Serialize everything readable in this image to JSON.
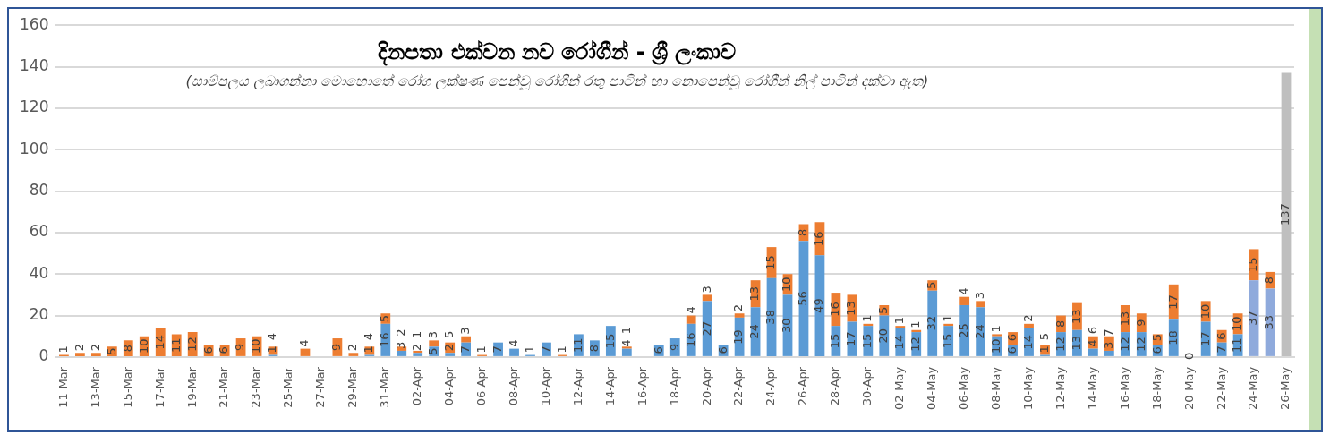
{
  "chart_data": {
    "type": "bar",
    "title": "දිනපතා එක්වන නව රෝගීන් - ශ්‍රී ලංකාව",
    "subtitle": "(සාම්පලය ලබාගන්නා මොහොතේ රෝග ලක්ෂණ පෙන්වූ රෝගීන් රතු පාටින් හා නොපෙන්වූ රෝගීන් නිල් පාටින් දක්වා ඇත)",
    "stacked": true,
    "data_labels": true,
    "grid": "y",
    "legend": false,
    "ylim": [
      0,
      160
    ],
    "yticks": [
      0,
      20,
      40,
      60,
      80,
      100,
      120,
      140,
      160
    ],
    "categories": [
      "11-Mar",
      null,
      "13-Mar",
      null,
      "15-Mar",
      null,
      "17-Mar",
      null,
      "19-Mar",
      null,
      "21-Mar",
      null,
      "23-Mar",
      null,
      "25-Mar",
      null,
      "27-Mar",
      null,
      "29-Mar",
      null,
      "31-Mar",
      null,
      "02-Apr",
      null,
      "04-Apr",
      null,
      "06-Apr",
      null,
      "08-Apr",
      null,
      "10-Apr",
      null,
      "12-Apr",
      null,
      "14-Apr",
      null,
      "16-Apr",
      null,
      "18-Apr",
      null,
      "20-Apr",
      null,
      "22-Apr",
      null,
      "24-Apr",
      null,
      "26-Apr",
      null,
      "28-Apr",
      null,
      "30-Apr",
      null,
      "02-May",
      null,
      "04-May",
      null,
      "06-May",
      null,
      "08-May",
      null,
      "10-May",
      null,
      "12-May",
      null,
      "14-May",
      null,
      "16-May",
      null,
      "18-May",
      null,
      "20-May",
      null,
      "22-May",
      null,
      "24-May",
      null,
      "26-May"
    ],
    "series": [
      {
        "color": "#5b9bd5",
        "colors": [
          null,
          null,
          null,
          null,
          null,
          null,
          null,
          null,
          null,
          null,
          null,
          null,
          null,
          null,
          null,
          null,
          null,
          null,
          null,
          null,
          null,
          null,
          null,
          null,
          null,
          null,
          null,
          null,
          null,
          null,
          null,
          null,
          null,
          null,
          null,
          null,
          null,
          null,
          null,
          null,
          null,
          null,
          null,
          null,
          null,
          null,
          null,
          null,
          null,
          null,
          null,
          null,
          null,
          null,
          null,
          null,
          null,
          null,
          null,
          null,
          null,
          null,
          null,
          null,
          null,
          null,
          null,
          null,
          null,
          null,
          null,
          null,
          null,
          null,
          "#8faadc",
          "#8faadc",
          null
        ],
        "values": [
          null,
          null,
          null,
          null,
          null,
          null,
          null,
          null,
          null,
          null,
          null,
          null,
          null,
          1,
          null,
          null,
          null,
          null,
          null,
          1,
          16,
          3,
          2,
          5,
          2,
          7,
          null,
          7,
          4,
          1,
          7,
          null,
          11,
          8,
          15,
          4,
          null,
          6,
          9,
          16,
          27,
          6,
          19,
          24,
          38,
          30,
          56,
          49,
          15,
          17,
          15,
          20,
          14,
          12,
          32,
          15,
          25,
          24,
          10,
          6,
          14,
          1,
          12,
          13,
          4,
          3,
          12,
          12,
          6,
          18,
          0,
          17,
          7,
          11,
          37,
          33,
          null
        ]
      },
      {
        "color": "#ed7d31",
        "values": [
          1,
          2,
          2,
          5,
          8,
          10,
          14,
          11,
          12,
          6,
          6,
          9,
          10,
          4,
          null,
          4,
          null,
          9,
          2,
          4,
          5,
          2,
          1,
          3,
          5,
          3,
          1,
          null,
          null,
          null,
          null,
          1,
          null,
          null,
          null,
          1,
          null,
          null,
          null,
          4,
          3,
          null,
          2,
          13,
          15,
          10,
          8,
          16,
          16,
          13,
          1,
          5,
          1,
          1,
          5,
          1,
          4,
          3,
          1,
          6,
          2,
          5,
          8,
          13,
          6,
          7,
          13,
          9,
          5,
          17,
          null,
          10,
          6,
          10,
          15,
          8,
          null
        ]
      },
      {
        "color": "#bfbfbf",
        "values": [
          null,
          null,
          null,
          null,
          null,
          null,
          null,
          null,
          null,
          null,
          null,
          null,
          null,
          null,
          null,
          null,
          null,
          null,
          null,
          null,
          null,
          null,
          null,
          null,
          null,
          null,
          null,
          null,
          null,
          null,
          null,
          null,
          null,
          null,
          null,
          null,
          null,
          null,
          null,
          null,
          null,
          null,
          null,
          null,
          null,
          null,
          null,
          null,
          null,
          null,
          null,
          null,
          null,
          null,
          null,
          null,
          null,
          null,
          null,
          null,
          null,
          null,
          null,
          null,
          null,
          null,
          null,
          null,
          null,
          null,
          null,
          null,
          null,
          null,
          null,
          null,
          137
        ]
      }
    ]
  }
}
